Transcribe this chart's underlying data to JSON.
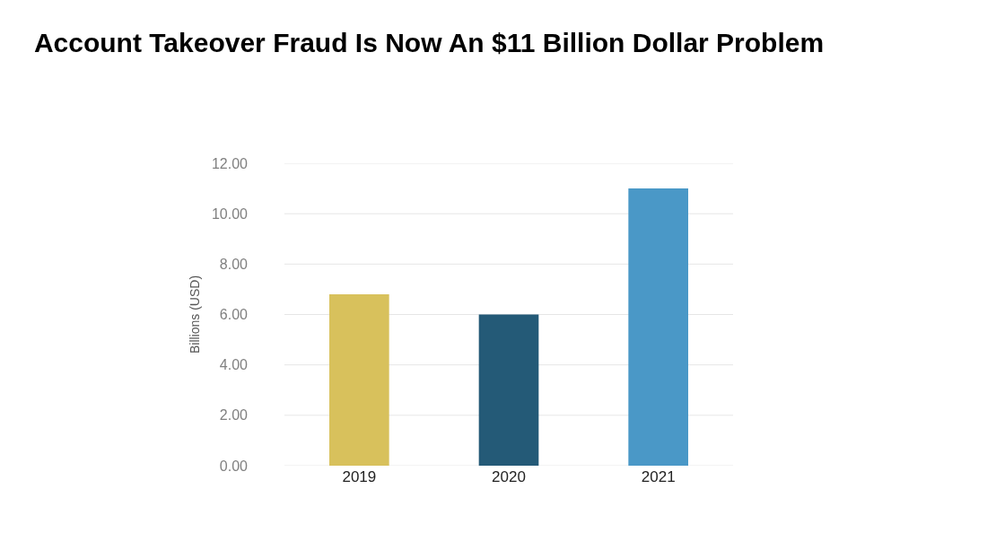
{
  "chart_data": {
    "type": "bar",
    "title": "Account Takeover Fraud Is Now An $11 Billion Dollar Problem",
    "ylabel": "Billions (USD)",
    "categories": [
      "2019",
      "2020",
      "2021"
    ],
    "values": [
      6.8,
      6.0,
      11.0
    ],
    "colors": [
      "#d8c15c",
      "#245a77",
      "#4a98c7"
    ],
    "ylim": [
      0,
      12
    ],
    "yticks": [
      {
        "value": 0,
        "label": "0.00"
      },
      {
        "value": 2,
        "label": "2.00"
      },
      {
        "value": 4,
        "label": "4.00"
      },
      {
        "value": 6,
        "label": "6.00"
      },
      {
        "value": 8,
        "label": "8.00"
      },
      {
        "value": 10,
        "label": "10.00"
      },
      {
        "value": 12,
        "label": "12.00"
      }
    ],
    "grid": "y"
  }
}
